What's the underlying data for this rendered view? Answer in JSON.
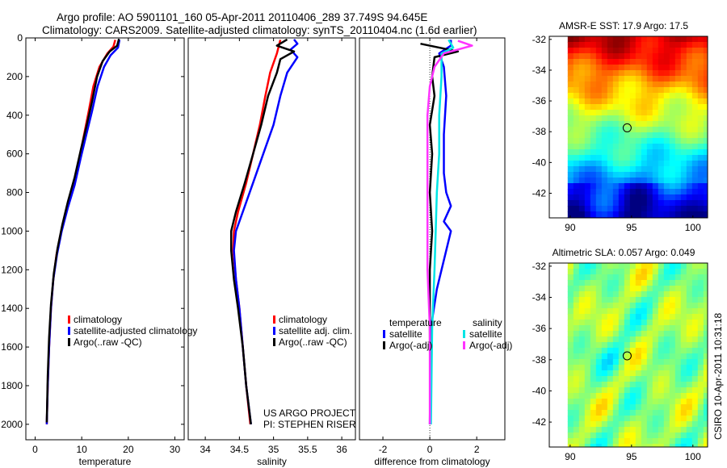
{
  "header": {
    "line1": "Argo profile: AO 5901101_160 05-Apr-2011 20110406_289 37.749S 94.645E",
    "line2": "Climatology: CARS2009. Satellite-adjusted climatology: synTS_20110404.nc (1.6d earlier)"
  },
  "side_label": "CSIRO 10-Apr-2011 10:31:18",
  "colors": {
    "red": "#ff0000",
    "blue": "#0000ff",
    "black": "#000000",
    "cyan": "#00e5e5",
    "magenta": "#ff33ff"
  },
  "chart_data": [
    {
      "type": "line",
      "id": "temperature",
      "xlabel": "temperature",
      "x_ticks": [
        "0",
        "10",
        "20",
        "30"
      ],
      "y_ticks": [
        "0",
        "200",
        "400",
        "600",
        "800",
        "1000",
        "1200",
        "1400",
        "1600",
        "1800",
        "2000"
      ],
      "xlim": [
        -2,
        32
      ],
      "ylim": [
        2080,
        0
      ],
      "legend": [
        "climatology",
        "satellite-adjusted climatology",
        "Argo(..raw -QC)"
      ],
      "series": [
        {
          "name": "climatology",
          "color": "red",
          "points": [
            [
              17.2,
              10
            ],
            [
              16.8,
              45
            ],
            [
              15.5,
              80
            ],
            [
              13.8,
              150
            ],
            [
              12.5,
              250
            ],
            [
              11.5,
              380
            ],
            [
              10.5,
              500
            ],
            [
              9.5,
              620
            ],
            [
              8.2,
              760
            ],
            [
              6.8,
              880
            ],
            [
              5.6,
              1000
            ],
            [
              4.6,
              1120
            ],
            [
              3.9,
              1250
            ],
            [
              3.4,
              1400
            ],
            [
              3.0,
              1600
            ],
            [
              2.7,
              1800
            ],
            [
              2.5,
              2000
            ]
          ]
        },
        {
          "name": "satellite-adjusted climatology",
          "color": "blue",
          "points": [
            [
              18.1,
              10
            ],
            [
              17.8,
              50
            ],
            [
              16.2,
              90
            ],
            [
              14.8,
              150
            ],
            [
              13.4,
              250
            ],
            [
              12.2,
              380
            ],
            [
              11.0,
              500
            ],
            [
              9.8,
              620
            ],
            [
              8.5,
              760
            ],
            [
              7.0,
              880
            ],
            [
              5.7,
              1000
            ],
            [
              4.7,
              1120
            ],
            [
              3.9,
              1250
            ],
            [
              3.4,
              1400
            ],
            [
              3.0,
              1600
            ],
            [
              2.7,
              1800
            ],
            [
              2.5,
              2000
            ]
          ]
        },
        {
          "name": "Argo(..raw -QC)",
          "color": "black",
          "points": [
            [
              18.0,
              5
            ],
            [
              17.6,
              40
            ],
            [
              16.0,
              70
            ],
            [
              14.5,
              120
            ],
            [
              13.3,
              200
            ],
            [
              12.2,
              330
            ],
            [
              11.0,
              460
            ],
            [
              9.8,
              580
            ],
            [
              8.5,
              720
            ],
            [
              7.0,
              850
            ],
            [
              5.8,
              970
            ],
            [
              4.8,
              1090
            ],
            [
              4.0,
              1220
            ],
            [
              3.4,
              1380
            ],
            [
              3.0,
              1550
            ],
            [
              2.7,
              1750
            ],
            [
              2.5,
              1990
            ]
          ]
        }
      ]
    },
    {
      "type": "line",
      "id": "salinity",
      "xlabel": "salinity",
      "x_ticks": [
        "34",
        "34.5",
        "35",
        "35.5",
        "36"
      ],
      "y_ticks": [],
      "xlim": [
        33.75,
        36.2
      ],
      "ylim": [
        2080,
        0
      ],
      "legend": [
        "climatology",
        "satellite adj. clim.",
        "Argo(..raw -QC)"
      ],
      "annotation": [
        "US ARGO PROJECT",
        "PI: STEPHEN RISER"
      ],
      "series": [
        {
          "name": "climatology",
          "color": "red",
          "points": [
            [
              35.1,
              10
            ],
            [
              35.05,
              80
            ],
            [
              34.95,
              180
            ],
            [
              34.88,
              300
            ],
            [
              34.8,
              450
            ],
            [
              34.7,
              600
            ],
            [
              34.6,
              750
            ],
            [
              34.48,
              900
            ],
            [
              34.42,
              1000
            ],
            [
              34.41,
              1100
            ],
            [
              34.45,
              1250
            ],
            [
              34.5,
              1400
            ],
            [
              34.55,
              1600
            ],
            [
              34.6,
              1800
            ],
            [
              34.66,
              2000
            ]
          ]
        },
        {
          "name": "satellite adj. clim.",
          "color": "blue",
          "points": [
            [
              35.3,
              8
            ],
            [
              35.35,
              30
            ],
            [
              35.25,
              60
            ],
            [
              35.35,
              100
            ],
            [
              35.2,
              180
            ],
            [
              35.1,
              300
            ],
            [
              35.0,
              450
            ],
            [
              34.85,
              600
            ],
            [
              34.7,
              750
            ],
            [
              34.55,
              900
            ],
            [
              34.45,
              1000
            ],
            [
              34.42,
              1100
            ],
            [
              34.45,
              1250
            ],
            [
              34.5,
              1400
            ],
            [
              34.55,
              1600
            ],
            [
              34.6,
              1800
            ],
            [
              34.67,
              2000
            ]
          ]
        },
        {
          "name": "Argo(..raw -QC)",
          "color": "black",
          "points": [
            [
              35.2,
              8
            ],
            [
              35.05,
              40
            ],
            [
              35.3,
              70
            ],
            [
              35.1,
              110
            ],
            [
              35.05,
              180
            ],
            [
              34.92,
              300
            ],
            [
              34.82,
              450
            ],
            [
              34.7,
              600
            ],
            [
              34.58,
              750
            ],
            [
              34.45,
              900
            ],
            [
              34.38,
              1000
            ],
            [
              34.38,
              1100
            ],
            [
              34.42,
              1250
            ],
            [
              34.48,
              1400
            ],
            [
              34.55,
              1600
            ],
            [
              34.6,
              1800
            ],
            [
              34.67,
              2000
            ]
          ]
        }
      ]
    },
    {
      "type": "line",
      "id": "difference",
      "xlabel": "difference from climatology",
      "x_ticks": [
        "-2",
        "0",
        "2"
      ],
      "y_ticks": [],
      "xlim": [
        -3,
        3.2
      ],
      "ylim": [
        2080,
        0
      ],
      "legend_groups": [
        {
          "title": "temperature",
          "items": [
            "satellite",
            "Argo(-adj)"
          ]
        },
        {
          "title": "salinity",
          "items": [
            "satellite",
            "Argo(-adj)"
          ]
        }
      ],
      "series": [
        {
          "name": "satellite",
          "color": "blue",
          "points": [
            [
              0.9,
              10
            ],
            [
              0.9,
              40
            ],
            [
              0.4,
              80
            ],
            [
              0.6,
              150
            ],
            [
              0.7,
              300
            ],
            [
              0.6,
              500
            ],
            [
              0.6,
              700
            ],
            [
              0.7,
              800
            ],
            [
              0.9,
              870
            ],
            [
              0.6,
              950
            ],
            [
              0.9,
              1000
            ],
            [
              0.7,
              1100
            ],
            [
              0.3,
              1300
            ],
            [
              0.05,
              1500
            ],
            [
              0.0,
              2000
            ]
          ]
        },
        {
          "name": "Argo(-adj)",
          "color": "black",
          "points": [
            [
              -0.4,
              30
            ],
            [
              1.2,
              70
            ],
            [
              0.2,
              100
            ],
            [
              0.1,
              200
            ],
            [
              0.2,
              300
            ],
            [
              0.0,
              450
            ],
            [
              0.1,
              600
            ],
            [
              0.0,
              800
            ],
            [
              0.1,
              1000
            ],
            [
              0.0,
              1200
            ],
            [
              0.0,
              1500
            ],
            [
              0.02,
              2000
            ]
          ]
        },
        {
          "name": "satellite",
          "color": "cyan",
          "points": [
            [
              0.8,
              10
            ],
            [
              1.0,
              50
            ],
            [
              0.5,
              80
            ],
            [
              0.5,
              200
            ],
            [
              0.4,
              400
            ],
            [
              0.4,
              600
            ],
            [
              0.3,
              800
            ],
            [
              0.25,
              1000
            ],
            [
              0.2,
              1200
            ],
            [
              0.1,
              1500
            ],
            [
              0.05,
              2000
            ]
          ]
        },
        {
          "name": "Argo(-adj)",
          "color": "magenta",
          "points": [
            [
              1.2,
              15
            ],
            [
              1.8,
              40
            ],
            [
              0.6,
              80
            ],
            [
              0.2,
              150
            ],
            [
              0.0,
              250
            ],
            [
              -0.1,
              400
            ],
            [
              -0.1,
              600
            ],
            [
              -0.1,
              800
            ],
            [
              -0.1,
              1000
            ],
            [
              -0.1,
              1200
            ],
            [
              0.0,
              1500
            ],
            [
              0.0,
              2000
            ]
          ]
        }
      ]
    },
    {
      "type": "heatmap",
      "id": "sst",
      "title": "AMSR-E SST: 17.9 Argo: 17.5",
      "x_ticks": [
        "90",
        "95",
        "100"
      ],
      "y_ticks": [
        "-32",
        "-34",
        "-36",
        "-38",
        "-40",
        "-42"
      ],
      "xlim": [
        88.3,
        101.2
      ],
      "ylim": [
        -43.6,
        -31.8
      ],
      "float_position": [
        94.645,
        -37.749
      ]
    },
    {
      "type": "heatmap",
      "id": "sla",
      "title": "Altimetric SLA: 0.057 Argo: 0.049",
      "x_ticks": [
        "90",
        "95",
        "100"
      ],
      "y_ticks": [
        "-32",
        "-34",
        "-36",
        "-38",
        "-40",
        "-42"
      ],
      "xlim": [
        88.3,
        101.2
      ],
      "ylim": [
        -43.6,
        -31.8
      ],
      "float_position": [
        94.645,
        -37.749
      ]
    }
  ]
}
